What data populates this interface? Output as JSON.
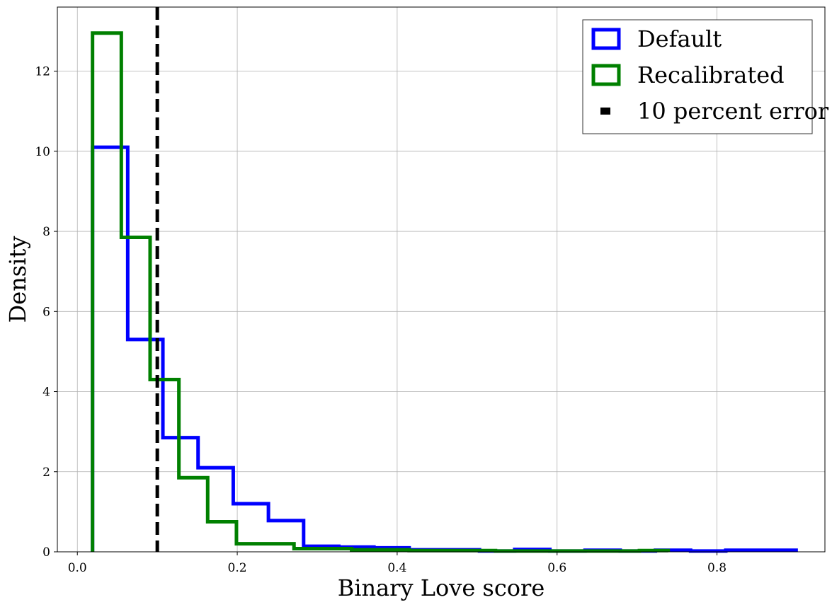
{
  "chart_data": {
    "type": "histogram",
    "xlabel": "Binary Love score",
    "ylabel": "Density",
    "xlim": [
      -0.025,
      0.935
    ],
    "ylim": [
      0,
      13.6
    ],
    "xticks": [
      0.0,
      0.2,
      0.4,
      0.6,
      0.8
    ],
    "xtick_labels": [
      "0.0",
      "0.2",
      "0.4",
      "0.6",
      "0.8"
    ],
    "yticks": [
      0,
      2,
      4,
      6,
      8,
      10,
      12
    ],
    "ytick_labels": [
      "0",
      "2",
      "4",
      "6",
      "8",
      "10",
      "12"
    ],
    "grid": true,
    "legend_position": "top-right",
    "series": [
      {
        "name": "Default",
        "color": "#0000ff",
        "bin_edges": [
          0.019,
          0.063,
          0.107,
          0.151,
          0.195,
          0.239,
          0.283,
          0.327,
          0.371,
          0.415,
          0.459,
          0.503,
          0.547,
          0.591,
          0.635,
          0.679,
          0.723,
          0.767,
          0.811,
          0.855,
          0.899
        ],
        "values": [
          10.1,
          5.3,
          2.85,
          2.1,
          1.2,
          0.78,
          0.14,
          0.12,
          0.1,
          0.05,
          0.05,
          0.02,
          0.06,
          0.02,
          0.04,
          0.02,
          0.04,
          0.02,
          0.04,
          0.04
        ]
      },
      {
        "name": "Recalibrated",
        "color": "#008000",
        "bin_edges": [
          0.019,
          0.055,
          0.091,
          0.127,
          0.163,
          0.199,
          0.235,
          0.271,
          0.307,
          0.343,
          0.379,
          0.415,
          0.451,
          0.487,
          0.523,
          0.559,
          0.595,
          0.631,
          0.667,
          0.703,
          0.739
        ],
        "values": [
          12.95,
          7.85,
          4.3,
          1.85,
          0.75,
          0.2,
          0.2,
          0.08,
          0.08,
          0.05,
          0.05,
          0.03,
          0.03,
          0.03,
          0.02,
          0.02,
          0.02,
          0.02,
          0.02,
          0.03
        ]
      }
    ],
    "vline": {
      "name": "10 percent error",
      "x": 0.1,
      "color": "#000000",
      "style": "dashed"
    }
  }
}
